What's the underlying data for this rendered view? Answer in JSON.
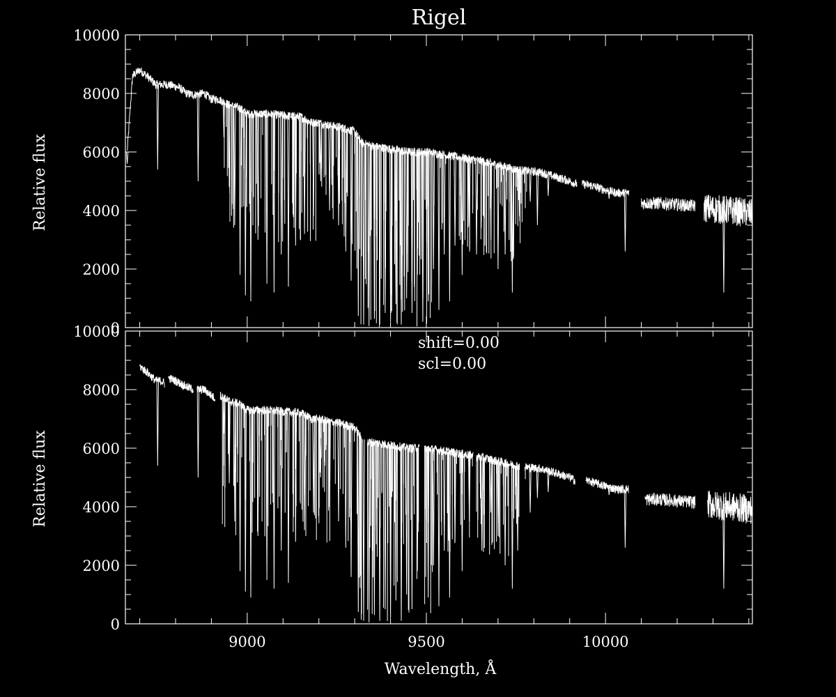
{
  "chart_data": [
    {
      "type": "line",
      "title": "Rigel",
      "xlabel": "",
      "ylabel": "Relative flux",
      "xlim": [
        8660,
        10410
      ],
      "ylim": [
        0,
        10000
      ],
      "x_ticks": [
        9000,
        9500,
        10000
      ],
      "y_ticks": [
        0,
        2000,
        4000,
        6000,
        8000,
        10000
      ],
      "grid": false,
      "annotations": [],
      "continuum_segments": [
        {
          "x": [
            8665,
            8680,
            8700,
            8720,
            8745,
            8780,
            8810,
            8830,
            8850,
            8880,
            8900,
            8920,
            8950,
            8980,
            9000,
            9050,
            9100,
            9150,
            9180,
            9200,
            9230,
            9260,
            9300,
            9320,
            9350,
            9400,
            9450,
            9500,
            9550,
            9600,
            9650,
            9700,
            9750,
            9780,
            9820,
            9860,
            9900,
            9920
          ],
          "y": [
            6000,
            8600,
            8800,
            8600,
            8300,
            8300,
            8200,
            8000,
            7950,
            8000,
            7800,
            7800,
            7600,
            7500,
            7300,
            7300,
            7250,
            7200,
            7000,
            7000,
            6900,
            6850,
            6700,
            6300,
            6200,
            6100,
            6000,
            6000,
            5900,
            5800,
            5700,
            5550,
            5400,
            5350,
            5300,
            5150,
            5000,
            4900
          ]
        },
        {
          "x": [
            9935,
            9960,
            10000,
            10030,
            10065
          ],
          "y": [
            4900,
            4850,
            4700,
            4600,
            4600
          ]
        },
        {
          "x": [
            10100,
            10150,
            10200,
            10250
          ],
          "y": [
            4250,
            4250,
            4200,
            4150
          ]
        },
        {
          "x": [
            10275,
            10300,
            10350,
            10410
          ],
          "y": [
            4100,
            4050,
            4000,
            3900
          ]
        }
      ],
      "absorption_lines": [
        {
          "x": 8665,
          "min": 5600
        },
        {
          "x": 8750,
          "min": 5400
        },
        {
          "x": 8863,
          "min": 5000
        },
        {
          "x": 8935,
          "min": 6500
        },
        {
          "x": 8950,
          "min": 4800
        },
        {
          "x": 8965,
          "min": 3500
        },
        {
          "x": 8980,
          "min": 1800
        },
        {
          "x": 8995,
          "min": 1100
        },
        {
          "x": 9010,
          "min": 900
        },
        {
          "x": 9030,
          "min": 3000
        },
        {
          "x": 9055,
          "min": 1500
        },
        {
          "x": 9075,
          "min": 1200
        },
        {
          "x": 9095,
          "min": 2500
        },
        {
          "x": 9115,
          "min": 1400
        },
        {
          "x": 9135,
          "min": 2800
        },
        {
          "x": 9160,
          "min": 3200
        },
        {
          "x": 9185,
          "min": 3800
        },
        {
          "x": 9205,
          "min": 5000
        },
        {
          "x": 9230,
          "min": 4000
        },
        {
          "x": 9255,
          "min": 3500
        },
        {
          "x": 9275,
          "min": 2600
        },
        {
          "x": 9290,
          "min": 1600
        },
        {
          "x": 9310,
          "min": 400
        },
        {
          "x": 9325,
          "min": 100
        },
        {
          "x": 9340,
          "min": 50
        },
        {
          "x": 9355,
          "min": 300
        },
        {
          "x": 9370,
          "min": 100
        },
        {
          "x": 9385,
          "min": 500
        },
        {
          "x": 9400,
          "min": 200
        },
        {
          "x": 9415,
          "min": 800
        },
        {
          "x": 9430,
          "min": 100
        },
        {
          "x": 9445,
          "min": 1000
        },
        {
          "x": 9460,
          "min": 500
        },
        {
          "x": 9475,
          "min": 1800
        },
        {
          "x": 9490,
          "min": 200
        },
        {
          "x": 9505,
          "min": 900
        },
        {
          "x": 9520,
          "min": 2000
        },
        {
          "x": 9535,
          "min": 600
        },
        {
          "x": 9550,
          "min": 2500
        },
        {
          "x": 9565,
          "min": 900
        },
        {
          "x": 9580,
          "min": 2800
        },
        {
          "x": 9600,
          "min": 1800
        },
        {
          "x": 9620,
          "min": 3500
        },
        {
          "x": 9640,
          "min": 2500
        },
        {
          "x": 9660,
          "min": 3800
        },
        {
          "x": 9680,
          "min": 3000
        },
        {
          "x": 9700,
          "min": 2000
        },
        {
          "x": 9720,
          "min": 2500
        },
        {
          "x": 9740,
          "min": 1200
        },
        {
          "x": 9760,
          "min": 3800
        },
        {
          "x": 9790,
          "min": 4300
        },
        {
          "x": 9810,
          "min": 3500
        },
        {
          "x": 9840,
          "min": 4500
        },
        {
          "x": 10010,
          "min": 4400
        },
        {
          "x": 10055,
          "min": 2600
        },
        {
          "x": 10330,
          "min": 1200
        }
      ]
    },
    {
      "type": "line",
      "title": "",
      "xlabel": "Wavelength, Å",
      "ylabel": "Relative flux",
      "xlim": [
        8660,
        10410
      ],
      "ylim": [
        0,
        10000
      ],
      "x_ticks": [
        9000,
        9500,
        10000
      ],
      "y_ticks": [
        0,
        2000,
        4000,
        6000,
        8000,
        10000
      ],
      "grid": false,
      "annotations": [
        "shift=0.00",
        "scl=0.00"
      ],
      "continuum_segments": [
        {
          "x": [
            8700,
            8720,
            8745,
            8760,
            8770
          ],
          "y": [
            8800,
            8600,
            8300,
            8300,
            8200
          ]
        },
        {
          "x": [
            8780,
            8800,
            8830,
            8850
          ],
          "y": [
            8400,
            8300,
            8100,
            8000
          ]
        },
        {
          "x": [
            8860,
            8880,
            8900,
            8910
          ],
          "y": [
            8000,
            8000,
            7800,
            7700
          ]
        },
        {
          "x": [
            8925,
            8950,
            8980,
            9000,
            9030,
            9050,
            9100,
            9150,
            9180,
            9200,
            9230,
            9260,
            9300,
            9320
          ],
          "y": [
            7800,
            7600,
            7500,
            7300,
            7300,
            7300,
            7250,
            7200,
            7000,
            7000,
            6900,
            6850,
            6700,
            6300
          ]
        },
        {
          "x": [
            9335,
            9350,
            9400,
            9450,
            9480
          ],
          "y": [
            6200,
            6200,
            6100,
            6000,
            6000
          ]
        },
        {
          "x": [
            9495,
            9500,
            9550,
            9600,
            9630
          ],
          "y": [
            6000,
            6000,
            5900,
            5800,
            5750
          ]
        },
        {
          "x": [
            9640,
            9650,
            9700,
            9750,
            9760
          ],
          "y": [
            5700,
            5700,
            5550,
            5400,
            5380
          ]
        },
        {
          "x": [
            9775,
            9780,
            9820,
            9860,
            9900,
            9915
          ],
          "y": [
            5350,
            5350,
            5300,
            5150,
            5000,
            4900
          ]
        },
        {
          "x": [
            9945,
            9960,
            10000,
            10030,
            10065
          ],
          "y": [
            4900,
            4850,
            4700,
            4600,
            4600
          ]
        },
        {
          "x": [
            10110,
            10150,
            10200,
            10250
          ],
          "y": [
            4250,
            4250,
            4200,
            4150
          ]
        },
        {
          "x": [
            10285,
            10300,
            10350,
            10410
          ],
          "y": [
            4100,
            4050,
            4000,
            3900
          ]
        }
      ],
      "absorption_lines": [
        {
          "x": 8750,
          "min": 5400
        },
        {
          "x": 8863,
          "min": 5000
        },
        {
          "x": 8935,
          "min": 6500
        },
        {
          "x": 8950,
          "min": 4800
        },
        {
          "x": 8965,
          "min": 3500
        },
        {
          "x": 8980,
          "min": 1800
        },
        {
          "x": 8995,
          "min": 1100
        },
        {
          "x": 9010,
          "min": 900
        },
        {
          "x": 9030,
          "min": 3000
        },
        {
          "x": 9055,
          "min": 1500
        },
        {
          "x": 9075,
          "min": 1200
        },
        {
          "x": 9095,
          "min": 2500
        },
        {
          "x": 9115,
          "min": 1400
        },
        {
          "x": 9135,
          "min": 2800
        },
        {
          "x": 9160,
          "min": 3200
        },
        {
          "x": 9185,
          "min": 3800
        },
        {
          "x": 9205,
          "min": 5000
        },
        {
          "x": 9230,
          "min": 4000
        },
        {
          "x": 9255,
          "min": 3500
        },
        {
          "x": 9275,
          "min": 2600
        },
        {
          "x": 9290,
          "min": 1600
        },
        {
          "x": 9310,
          "min": 400
        },
        {
          "x": 9325,
          "min": 100
        },
        {
          "x": 9340,
          "min": 50
        },
        {
          "x": 9355,
          "min": 300
        },
        {
          "x": 9370,
          "min": 100
        },
        {
          "x": 9385,
          "min": 500
        },
        {
          "x": 9400,
          "min": 200
        },
        {
          "x": 9415,
          "min": 800
        },
        {
          "x": 9430,
          "min": 100
        },
        {
          "x": 9445,
          "min": 1000
        },
        {
          "x": 9460,
          "min": 500
        },
        {
          "x": 9475,
          "min": 1800
        },
        {
          "x": 9505,
          "min": 900
        },
        {
          "x": 9520,
          "min": 2000
        },
        {
          "x": 9535,
          "min": 600
        },
        {
          "x": 9550,
          "min": 2500
        },
        {
          "x": 9565,
          "min": 900
        },
        {
          "x": 9580,
          "min": 2800
        },
        {
          "x": 9600,
          "min": 1800
        },
        {
          "x": 9620,
          "min": 3500
        },
        {
          "x": 9655,
          "min": 2500
        },
        {
          "x": 9680,
          "min": 3800
        },
        {
          "x": 9700,
          "min": 3000
        },
        {
          "x": 9720,
          "min": 2000
        },
        {
          "x": 9740,
          "min": 1200
        },
        {
          "x": 9755,
          "min": 2500
        },
        {
          "x": 9790,
          "min": 3800
        },
        {
          "x": 9810,
          "min": 4300
        },
        {
          "x": 9840,
          "min": 4500
        },
        {
          "x": 10010,
          "min": 4400
        },
        {
          "x": 10055,
          "min": 2600
        },
        {
          "x": 10330,
          "min": 1200
        }
      ]
    }
  ]
}
